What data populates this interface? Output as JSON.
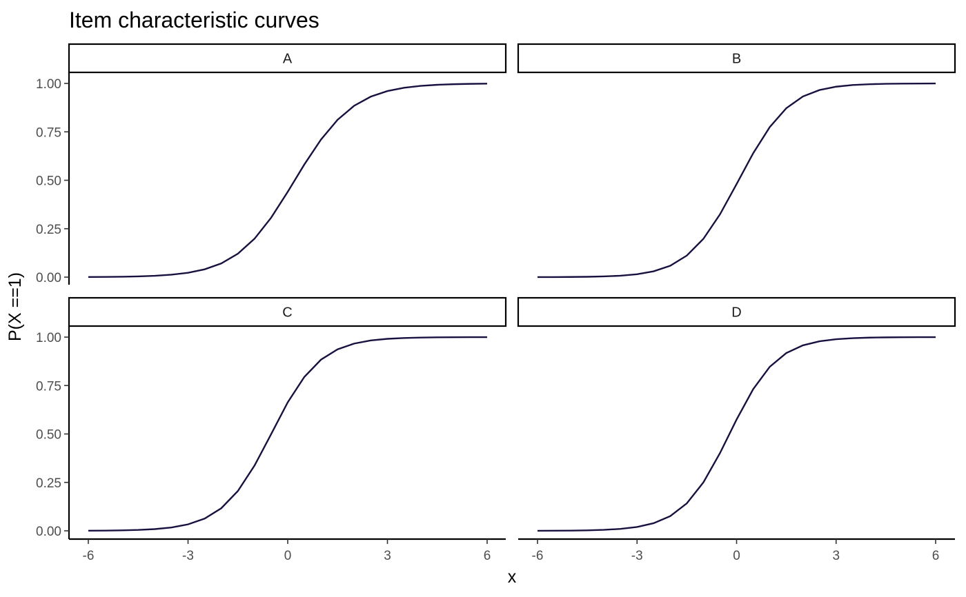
{
  "chart_data": {
    "type": "line",
    "title": "Item characteristic curves",
    "xlabel": "x",
    "ylabel": "P(X ==1)",
    "xlim": [
      -6,
      6
    ],
    "ylim": [
      0,
      1
    ],
    "x_ticks": [
      "-6",
      "-3",
      "0",
      "3",
      "6"
    ],
    "y_ticks": [
      "0.00",
      "0.25",
      "0.50",
      "0.75",
      "1.00"
    ],
    "line_color": "#1a1040",
    "layout": "facet 2x2",
    "legend": "none",
    "grid": false,
    "x": [
      -6,
      -5.5,
      -5,
      -4.5,
      -4,
      -3.5,
      -3,
      -2.5,
      -2,
      -1.5,
      -1,
      -0.5,
      0,
      0.5,
      1,
      1.5,
      2,
      2.5,
      3,
      3.5,
      4,
      4.5,
      5,
      5.5,
      6
    ],
    "panels": [
      {
        "name": "A",
        "values": [
          0.0007,
          0.0012,
          0.0021,
          0.0038,
          0.0069,
          0.0125,
          0.0226,
          0.0403,
          0.0707,
          0.1209,
          0.1982,
          0.3067,
          0.4403,
          0.5816,
          0.7101,
          0.8125,
          0.8848,
          0.9318,
          0.9606,
          0.9776,
          0.9874,
          0.9929,
          0.996,
          0.9978,
          0.9988
        ]
      },
      {
        "name": "B",
        "values": [
          0.0002,
          0.0004,
          0.0009,
          0.0018,
          0.0037,
          0.0074,
          0.015,
          0.03,
          0.0587,
          0.1113,
          0.1978,
          0.3242,
          0.4802,
          0.6393,
          0.7747,
          0.8723,
          0.9326,
          0.9659,
          0.9831,
          0.9917,
          0.9959,
          0.998,
          0.999,
          0.9995,
          0.9998
        ]
      },
      {
        "name": "C",
        "values": [
          0.0006,
          0.0012,
          0.0023,
          0.0046,
          0.0089,
          0.0173,
          0.0333,
          0.063,
          0.1165,
          0.2055,
          0.3365,
          0.4988,
          0.6635,
          0.7945,
          0.8835,
          0.937,
          0.9667,
          0.9827,
          0.9911,
          0.9954,
          0.9977,
          0.9988,
          0.9994,
          0.9997,
          0.9998
        ]
      },
      {
        "name": "D",
        "values": [
          0.0003,
          0.0006,
          0.0012,
          0.0024,
          0.005,
          0.01,
          0.0198,
          0.0392,
          0.0759,
          0.1418,
          0.25,
          0.4013,
          0.5744,
          0.7311,
          0.8469,
          0.9179,
          0.9575,
          0.9785,
          0.9892,
          0.9946,
          0.9973,
          0.9987,
          0.9993,
          0.9997,
          0.9998
        ]
      }
    ]
  }
}
